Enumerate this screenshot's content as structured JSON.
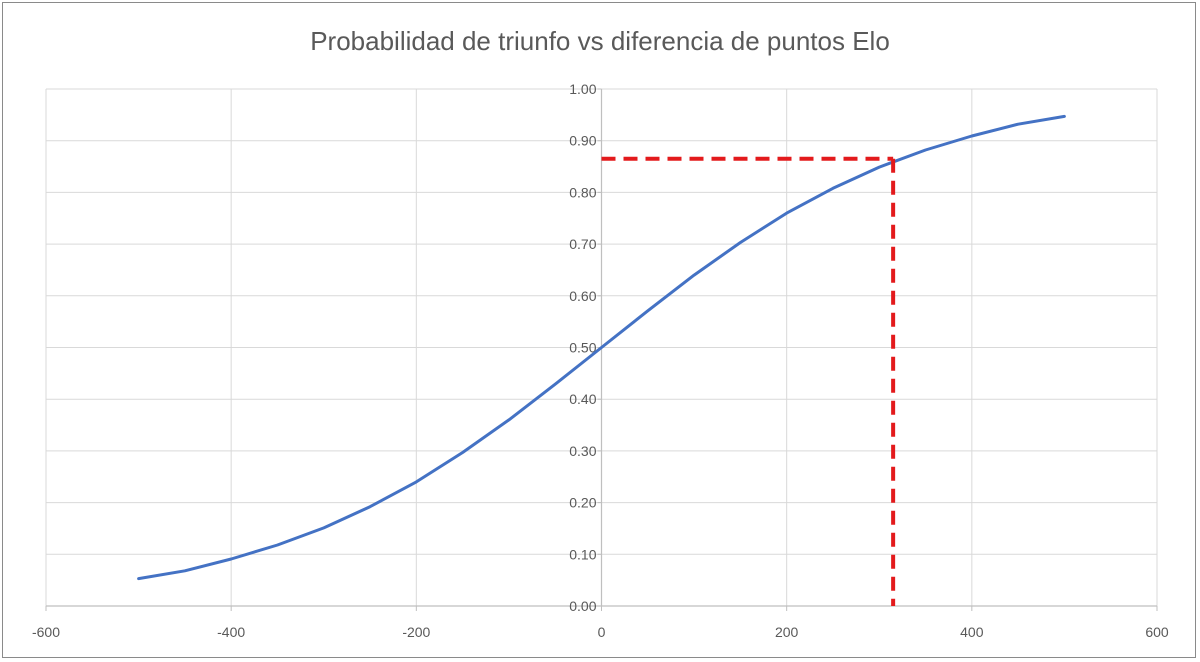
{
  "chart_data": {
    "type": "line",
    "title": "Probabilidad de triunfo vs diferencia de puntos Elo",
    "xlabel": "",
    "ylabel": "",
    "xlim": [
      -600,
      600
    ],
    "ylim": [
      0,
      1
    ],
    "x_ticks": [
      "-600",
      "-400",
      "-200",
      "0",
      "200",
      "400",
      "600"
    ],
    "y_ticks": [
      "0.00",
      "0.10",
      "0.20",
      "0.30",
      "0.40",
      "0.50",
      "0.60",
      "0.70",
      "0.80",
      "0.90",
      "1.00"
    ],
    "grid": true,
    "series": [
      {
        "color": "#4472c4",
        "x": [
          -500,
          -450,
          -400,
          -350,
          -300,
          -250,
          -200,
          -150,
          -100,
          -50,
          0,
          50,
          100,
          150,
          200,
          250,
          300,
          350,
          400,
          450,
          500
        ],
        "y": [
          0.053,
          0.068,
          0.091,
          0.118,
          0.151,
          0.192,
          0.24,
          0.297,
          0.36,
          0.429,
          0.5,
          0.571,
          0.64,
          0.703,
          0.76,
          0.808,
          0.849,
          0.882,
          0.909,
          0.932,
          0.947
        ]
      }
    ],
    "annotation": {
      "style": "dashed",
      "color": "#e31a1c",
      "x": 315,
      "y": 0.865
    }
  }
}
